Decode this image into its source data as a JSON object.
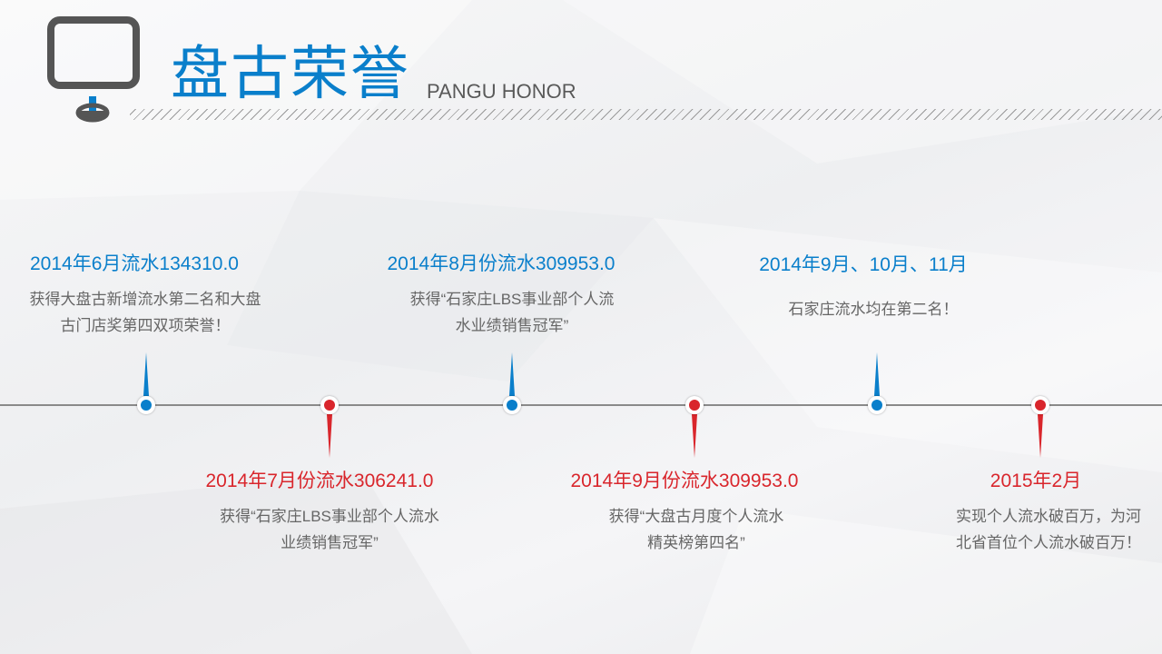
{
  "header": {
    "title": "盘古荣誉",
    "subtitle": "PANGU HONOR",
    "icon": "signboard-icon"
  },
  "colors": {
    "blue": "#0a7fcb",
    "red": "#d9262c",
    "text": "#666666"
  },
  "timeline": [
    {
      "title": "2014年6月流水134310.0",
      "desc": "获得大盘古新增流水第二名和大盘\n古门店奖第四双项荣誉！",
      "color": "blue",
      "side": "up"
    },
    {
      "title": "2014年7月份流水306241.0",
      "desc": "获得“石家庄LBS事业部个人流水\n业绩销售冠军”",
      "color": "red",
      "side": "down"
    },
    {
      "title": "2014年8月份流水309953.0",
      "desc": "获得“石家庄LBS事业部个人流\n水业绩销售冠军”",
      "color": "blue",
      "side": "up"
    },
    {
      "title": "2014年9月份流水309953.0",
      "desc": "获得“大盘古月度个人流水\n精英榜第四名”",
      "color": "red",
      "side": "down"
    },
    {
      "title": "2014年9月、10月、11月",
      "desc": "石家庄流水均在第二名！",
      "color": "blue",
      "side": "up"
    },
    {
      "title": "2015年2月",
      "desc": "实现个人流水破百万，为河\n北省首位个人流水破百万！",
      "color": "red",
      "side": "down"
    }
  ]
}
